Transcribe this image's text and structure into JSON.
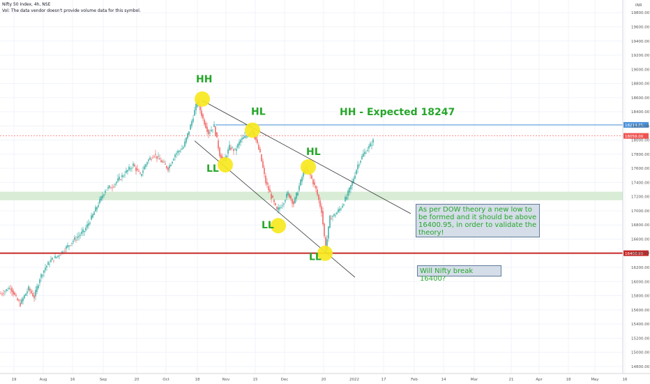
{
  "header": {
    "symbol": "Nifty 50 Index, 4h, NSE",
    "volume_note": "Vol: The data vendor doesn't provide volume data for this symbol."
  },
  "currency": "INR",
  "chart_data": {
    "type": "candlestick",
    "title": "Nifty 50 Index, 4h, NSE",
    "ylim": [
      14700,
      19980
    ],
    "y_ticks": [
      14800,
      15000,
      15200,
      15400,
      15600,
      15800,
      16000,
      16200,
      16400,
      16600,
      16800,
      17000,
      17200,
      17400,
      17600,
      17800,
      18000,
      18200,
      18400,
      18600,
      18800,
      19000,
      19200,
      19400,
      19600,
      19800
    ],
    "x_ticks": [
      "19",
      "Aug",
      "16",
      "Sep",
      "20",
      "Oct",
      "18",
      "Nov",
      "15",
      "Dec",
      "20",
      "2022",
      "17",
      "Feb",
      "14",
      "Mar",
      "21",
      "Apr",
      "18",
      "May",
      "16"
    ],
    "price_series": [
      {
        "d": 0,
        "p": 15830
      },
      {
        "d": 8,
        "p": 15880
      },
      {
        "d": 14,
        "p": 15920
      },
      {
        "d": 22,
        "p": 15760
      },
      {
        "d": 28,
        "p": 15680
      },
      {
        "d": 34,
        "p": 15800
      },
      {
        "d": 40,
        "p": 15900
      },
      {
        "d": 48,
        "p": 15780
      },
      {
        "d": 56,
        "p": 16050
      },
      {
        "d": 64,
        "p": 16200
      },
      {
        "d": 72,
        "p": 16300
      },
      {
        "d": 80,
        "p": 16350
      },
      {
        "d": 88,
        "p": 16420
      },
      {
        "d": 96,
        "p": 16500
      },
      {
        "d": 104,
        "p": 16580
      },
      {
        "d": 112,
        "p": 16650
      },
      {
        "d": 120,
        "p": 16720
      },
      {
        "d": 130,
        "p": 16900
      },
      {
        "d": 140,
        "p": 17100
      },
      {
        "d": 150,
        "p": 17300
      },
      {
        "d": 160,
        "p": 17350
      },
      {
        "d": 170,
        "p": 17450
      },
      {
        "d": 180,
        "p": 17550
      },
      {
        "d": 190,
        "p": 17650
      },
      {
        "d": 200,
        "p": 17500
      },
      {
        "d": 210,
        "p": 17700
      },
      {
        "d": 220,
        "p": 17800
      },
      {
        "d": 230,
        "p": 17700
      },
      {
        "d": 240,
        "p": 17600
      },
      {
        "d": 250,
        "p": 17800
      },
      {
        "d": 262,
        "p": 17900
      },
      {
        "d": 272,
        "p": 18200
      },
      {
        "d": 282,
        "p": 18550
      },
      {
        "d": 290,
        "p": 18300
      },
      {
        "d": 298,
        "p": 18100
      },
      {
        "d": 306,
        "p": 18200
      },
      {
        "d": 314,
        "p": 17800
      },
      {
        "d": 320,
        "p": 17700
      },
      {
        "d": 328,
        "p": 17900
      },
      {
        "d": 336,
        "p": 17850
      },
      {
        "d": 344,
        "p": 18000
      },
      {
        "d": 352,
        "p": 18050
      },
      {
        "d": 360,
        "p": 18150
      },
      {
        "d": 366,
        "p": 18000
      },
      {
        "d": 372,
        "p": 17800
      },
      {
        "d": 380,
        "p": 17400
      },
      {
        "d": 388,
        "p": 17200
      },
      {
        "d": 396,
        "p": 17000
      },
      {
        "d": 404,
        "p": 17100
      },
      {
        "d": 412,
        "p": 17250
      },
      {
        "d": 420,
        "p": 17100
      },
      {
        "d": 428,
        "p": 17350
      },
      {
        "d": 436,
        "p": 17600
      },
      {
        "d": 444,
        "p": 17500
      },
      {
        "d": 452,
        "p": 17300
      },
      {
        "d": 460,
        "p": 17000
      },
      {
        "d": 466,
        "p": 16450
      },
      {
        "d": 472,
        "p": 16900
      },
      {
        "d": 480,
        "p": 16950
      },
      {
        "d": 488,
        "p": 17050
      },
      {
        "d": 496,
        "p": 17200
      },
      {
        "d": 504,
        "p": 17400
      },
      {
        "d": 512,
        "p": 17650
      },
      {
        "d": 520,
        "p": 17800
      },
      {
        "d": 528,
        "p": 17900
      },
      {
        "d": 535,
        "p": 18000
      }
    ],
    "horizontal_levels": [
      {
        "value": 18214.85,
        "label": "18214.85",
        "color": "#4a90d9"
      },
      {
        "value": 18059.0,
        "label": "18059.00",
        "color": "#ef5350"
      },
      {
        "value": 16400.95,
        "label": "16400.95",
        "color": "#c62828"
      }
    ],
    "zone": {
      "from": 17150,
      "to": 17270,
      "color": "#d8ecd6"
    },
    "trendlines": [
      {
        "from": {
          "d": 289,
          "p": 18560
        },
        "to": {
          "d": 588,
          "p": 16960
        }
      },
      {
        "from": {
          "d": 278,
          "p": 17990
        },
        "to": {
          "d": 508,
          "p": 16060
        }
      }
    ],
    "swing_points": [
      {
        "label": "HH",
        "d": 289,
        "p": 18580
      },
      {
        "label": "HL",
        "d": 361,
        "p": 18140
      },
      {
        "label": "LL",
        "d": 322,
        "p": 17650
      },
      {
        "label": "HL",
        "d": 441,
        "p": 17620
      },
      {
        "label": "LL",
        "d": 398,
        "p": 16790
      },
      {
        "label": "LL",
        "d": 465,
        "p": 16400
      }
    ],
    "annotations": [
      {
        "text": "HH - Expected 18247",
        "d": 486,
        "p": 18400
      }
    ]
  },
  "notes": {
    "dow_theory": "As per DOW theory a new low to be formed and it should be above 16400.95, in order to validate the theory!",
    "question": "Will Nifty break 16400?"
  },
  "colors": {
    "up": "#26a69a",
    "down": "#ef5350",
    "label_green": "#26a62a",
    "highlight": "#f7e81e"
  }
}
